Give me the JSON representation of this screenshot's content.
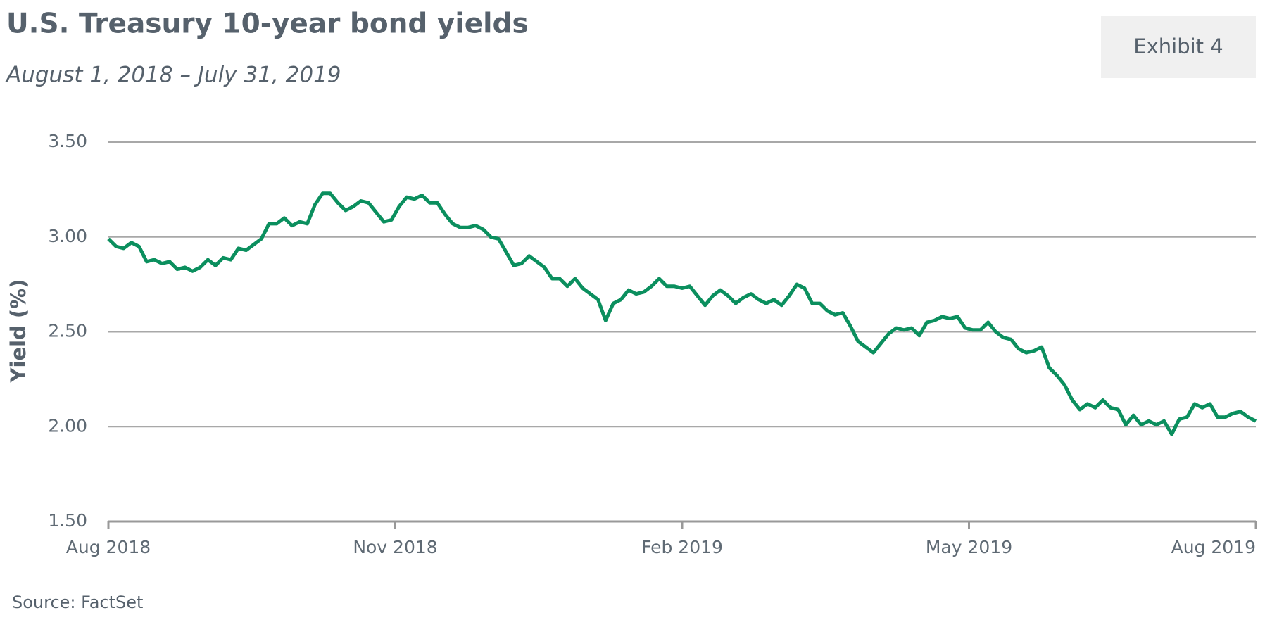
{
  "exhibit": "Exhibit 4",
  "source": "Source: FactSet",
  "chart_data": {
    "type": "line",
    "title": "U.S. Treasury 10-year bond yields",
    "subtitle": "August 1, 2018 – July 31, 2019",
    "y_label": "Yield (%)",
    "color": "#0b8f5e",
    "values": [
      2.99,
      2.95,
      2.94,
      2.97,
      2.95,
      2.87,
      2.88,
      2.86,
      2.87,
      2.83,
      2.84,
      2.82,
      2.84,
      2.88,
      2.85,
      2.89,
      2.88,
      2.94,
      2.93,
      2.96,
      2.99,
      3.07,
      3.07,
      3.1,
      3.06,
      3.08,
      3.07,
      3.17,
      3.23,
      3.23,
      3.18,
      3.14,
      3.16,
      3.19,
      3.18,
      3.13,
      3.08,
      3.09,
      3.16,
      3.21,
      3.2,
      3.22,
      3.18,
      3.18,
      3.12,
      3.07,
      3.05,
      3.05,
      3.06,
      3.04,
      3.0,
      2.99,
      2.92,
      2.85,
      2.86,
      2.9,
      2.87,
      2.84,
      2.78,
      2.78,
      2.74,
      2.78,
      2.73,
      2.7,
      2.67,
      2.56,
      2.65,
      2.67,
      2.72,
      2.7,
      2.71,
      2.74,
      2.78,
      2.74,
      2.74,
      2.73,
      2.74,
      2.69,
      2.64,
      2.69,
      2.72,
      2.69,
      2.65,
      2.68,
      2.7,
      2.67,
      2.65,
      2.67,
      2.64,
      2.69,
      2.75,
      2.73,
      2.65,
      2.65,
      2.61,
      2.59,
      2.6,
      2.53,
      2.45,
      2.42,
      2.39,
      2.44,
      2.49,
      2.52,
      2.51,
      2.52,
      2.48,
      2.55,
      2.56,
      2.58,
      2.57,
      2.58,
      2.52,
      2.51,
      2.51,
      2.55,
      2.5,
      2.47,
      2.46,
      2.41,
      2.39,
      2.4,
      2.42,
      2.31,
      2.27,
      2.22,
      2.14,
      2.09,
      2.12,
      2.1,
      2.14,
      2.1,
      2.09,
      2.01,
      2.06,
      2.01,
      2.03,
      2.01,
      2.03,
      1.96,
      2.04,
      2.05,
      2.12,
      2.1,
      2.12,
      2.05,
      2.05,
      2.07,
      2.08,
      2.05,
      2.03
    ],
    "xlim": [
      "2018-08",
      "2019-08"
    ],
    "xticks": [
      {
        "value": "2018-08",
        "label": "Aug 2018"
      },
      {
        "value": "2018-11",
        "label": "Nov 2018"
      },
      {
        "value": "2019-02",
        "label": "Feb 2019"
      },
      {
        "value": "2019-05",
        "label": "May 2019"
      },
      {
        "value": "2019-08",
        "label": "Aug 2019"
      }
    ],
    "ylim": [
      1.5,
      3.5
    ],
    "yticks": [
      {
        "value": 1.5,
        "label": "1.50"
      },
      {
        "value": 2,
        "label": "2.00"
      },
      {
        "value": 2.5,
        "label": "2.50"
      },
      {
        "value": 3,
        "label": "3.00"
      },
      {
        "value": 3.5,
        "label": "3.50"
      }
    ],
    "grid": true
  }
}
